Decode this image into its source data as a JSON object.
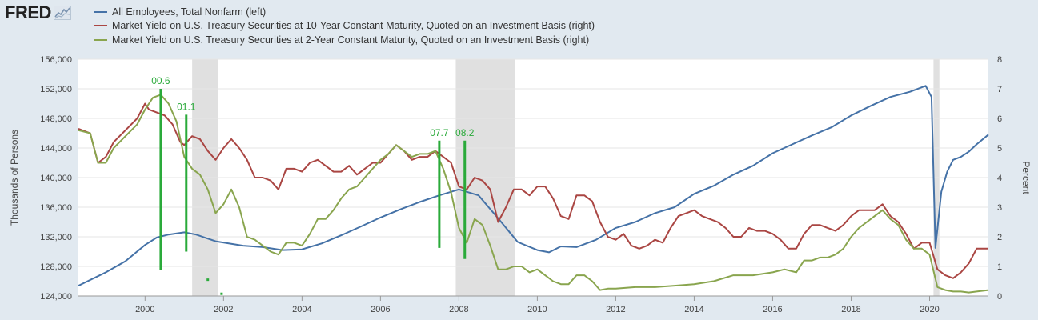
{
  "app": {
    "logo": "FRED"
  },
  "legend": [
    {
      "label": "All Employees, Total Nonfarm (left)",
      "color": "#4572a7"
    },
    {
      "label": "Market Yield on U.S. Treasury Securities at 10-Year Constant Maturity, Quoted on an Investment Basis (right)",
      "color": "#aa4643"
    },
    {
      "label": "Market Yield on U.S. Treasury Securities at 2-Year Constant Maturity, Quoted on an Investment Basis (right)",
      "color": "#89a54e"
    }
  ],
  "chart_data": {
    "type": "line",
    "xlim": [
      1998.3,
      2021.5
    ],
    "x_ticks": [
      "2000",
      "2002",
      "2004",
      "2006",
      "2008",
      "2010",
      "2012",
      "2014",
      "2016",
      "2018",
      "2020"
    ],
    "left_axis": {
      "label": "Thousands of Persons",
      "ylim": [
        124000,
        156000
      ],
      "ticks": [
        "124,000",
        "128,000",
        "132,000",
        "136,000",
        "140,000",
        "144,000",
        "148,000",
        "152,000",
        "156,000"
      ]
    },
    "right_axis": {
      "label": "Percent",
      "ylim": [
        0,
        8
      ],
      "ticks": [
        "0",
        "1",
        "2",
        "3",
        "4",
        "5",
        "6",
        "7",
        "8"
      ]
    },
    "recessions": [
      [
        2001.2,
        2001.85
      ],
      [
        2007.92,
        2009.42
      ],
      [
        2020.1,
        2020.25
      ]
    ],
    "series": [
      {
        "name": "All Employees, Total Nonfarm (left)",
        "axis": "left",
        "color": "#4572a7",
        "x": [
          1998.3,
          1999.0,
          1999.5,
          2000.0,
          2000.3,
          2000.6,
          2001.0,
          2001.3,
          2001.8,
          2002.5,
          2003.0,
          2003.5,
          2004.0,
          2004.5,
          2005.0,
          2005.5,
          2006.0,
          2006.5,
          2007.0,
          2007.5,
          2008.0,
          2008.5,
          2009.0,
          2009.5,
          2010.0,
          2010.3,
          2010.6,
          2011.0,
          2011.5,
          2012.0,
          2012.5,
          2013.0,
          2013.5,
          2014.0,
          2014.5,
          2015.0,
          2015.5,
          2016.0,
          2016.5,
          2017.0,
          2017.5,
          2018.0,
          2018.5,
          2019.0,
          2019.5,
          2019.9,
          2020.05,
          2020.15,
          2020.3,
          2020.45,
          2020.6,
          2020.8,
          2021.0,
          2021.2,
          2021.5
        ],
        "values": [
          125400,
          127200,
          128700,
          130900,
          131900,
          132300,
          132600,
          132300,
          131400,
          130800,
          130600,
          130200,
          130300,
          131100,
          132200,
          133400,
          134600,
          135700,
          136700,
          137600,
          138400,
          137600,
          134500,
          131300,
          130200,
          129900,
          130700,
          130600,
          131600,
          133200,
          134000,
          135200,
          136000,
          137800,
          138900,
          140400,
          141600,
          143300,
          144500,
          145700,
          146800,
          148400,
          149700,
          150900,
          151600,
          152400,
          150900,
          130500,
          138100,
          140800,
          142400,
          142800,
          143500,
          144500,
          145800
        ]
      },
      {
        "name": "Market Yield on U.S. Treasury Securities at 10-Year Constant Maturity, Quoted on an Investment Basis (right)",
        "axis": "right",
        "color": "#aa4643",
        "x": [
          1998.3,
          1998.6,
          1998.8,
          1999.0,
          1999.2,
          1999.5,
          1999.8,
          2000.0,
          2000.1,
          2000.3,
          2000.5,
          2000.7,
          2000.9,
          2001.0,
          2001.2,
          2001.4,
          2001.6,
          2001.8,
          2002.0,
          2002.2,
          2002.4,
          2002.6,
          2002.8,
          2003.0,
          2003.2,
          2003.4,
          2003.6,
          2003.8,
          2004.0,
          2004.2,
          2004.4,
          2004.6,
          2004.8,
          2005.0,
          2005.2,
          2005.4,
          2005.6,
          2005.8,
          2006.0,
          2006.2,
          2006.4,
          2006.6,
          2006.8,
          2007.0,
          2007.2,
          2007.4,
          2007.6,
          2007.8,
          2008.0,
          2008.2,
          2008.4,
          2008.6,
          2008.8,
          2009.0,
          2009.2,
          2009.4,
          2009.6,
          2009.8,
          2010.0,
          2010.2,
          2010.4,
          2010.6,
          2010.8,
          2011.0,
          2011.2,
          2011.4,
          2011.6,
          2011.8,
          2012.0,
          2012.2,
          2012.4,
          2012.6,
          2012.8,
          2013.0,
          2013.2,
          2013.4,
          2013.6,
          2013.8,
          2014.0,
          2014.2,
          2014.4,
          2014.6,
          2014.8,
          2015.0,
          2015.2,
          2015.4,
          2015.6,
          2015.8,
          2016.0,
          2016.2,
          2016.4,
          2016.6,
          2016.8,
          2017.0,
          2017.2,
          2017.4,
          2017.6,
          2017.8,
          2018.0,
          2018.2,
          2018.4,
          2018.6,
          2018.8,
          2019.0,
          2019.2,
          2019.4,
          2019.6,
          2019.8,
          2020.0,
          2020.2,
          2020.4,
          2020.6,
          2020.8,
          2021.0,
          2021.2,
          2021.5
        ],
        "values": [
          5.65,
          5.5,
          4.5,
          4.7,
          5.2,
          5.6,
          6.0,
          6.5,
          6.3,
          6.2,
          6.1,
          5.8,
          5.2,
          5.1,
          5.4,
          5.3,
          4.9,
          4.6,
          5.0,
          5.3,
          5.0,
          4.6,
          4.0,
          4.0,
          3.9,
          3.6,
          4.3,
          4.3,
          4.2,
          4.5,
          4.6,
          4.4,
          4.2,
          4.2,
          4.4,
          4.1,
          4.3,
          4.5,
          4.5,
          4.8,
          5.1,
          4.9,
          4.6,
          4.7,
          4.7,
          4.9,
          4.7,
          4.5,
          3.7,
          3.6,
          4.0,
          3.9,
          3.6,
          2.5,
          3.0,
          3.6,
          3.6,
          3.4,
          3.7,
          3.7,
          3.3,
          2.7,
          2.6,
          3.4,
          3.4,
          3.2,
          2.5,
          2.0,
          1.9,
          2.1,
          1.7,
          1.6,
          1.7,
          1.9,
          1.8,
          2.3,
          2.7,
          2.8,
          2.9,
          2.7,
          2.6,
          2.5,
          2.3,
          2.0,
          2.0,
          2.3,
          2.2,
          2.2,
          2.1,
          1.9,
          1.6,
          1.6,
          2.1,
          2.4,
          2.4,
          2.3,
          2.2,
          2.4,
          2.7,
          2.9,
          2.9,
          2.9,
          3.1,
          2.7,
          2.5,
          2.1,
          1.6,
          1.8,
          1.8,
          0.9,
          0.7,
          0.6,
          0.8,
          1.1,
          1.6,
          1.6
        ]
      },
      {
        "name": "Market Yield on U.S. Treasury Securities at 2-Year Constant Maturity, Quoted on an Investment Basis (right)",
        "axis": "right",
        "color": "#89a54e",
        "x": [
          1998.3,
          1998.6,
          1998.8,
          1999.0,
          1999.2,
          1999.5,
          1999.8,
          2000.0,
          2000.2,
          2000.4,
          2000.6,
          2000.8,
          2001.0,
          2001.2,
          2001.4,
          2001.6,
          2001.8,
          2002.0,
          2002.2,
          2002.4,
          2002.6,
          2002.8,
          2003.0,
          2003.2,
          2003.4,
          2003.6,
          2003.8,
          2004.0,
          2004.2,
          2004.4,
          2004.6,
          2004.8,
          2005.0,
          2005.2,
          2005.4,
          2005.6,
          2005.8,
          2006.0,
          2006.2,
          2006.4,
          2006.6,
          2006.8,
          2007.0,
          2007.2,
          2007.4,
          2007.6,
          2007.8,
          2008.0,
          2008.2,
          2008.4,
          2008.6,
          2008.8,
          2009.0,
          2009.2,
          2009.4,
          2009.6,
          2009.8,
          2010.0,
          2010.2,
          2010.4,
          2010.6,
          2010.8,
          2011.0,
          2011.2,
          2011.4,
          2011.6,
          2011.8,
          2012.0,
          2012.5,
          2013.0,
          2013.5,
          2014.0,
          2014.5,
          2015.0,
          2015.5,
          2016.0,
          2016.3,
          2016.6,
          2016.8,
          2017.0,
          2017.2,
          2017.4,
          2017.6,
          2017.8,
          2018.0,
          2018.2,
          2018.4,
          2018.6,
          2018.8,
          2019.0,
          2019.2,
          2019.4,
          2019.6,
          2019.8,
          2020.0,
          2020.2,
          2020.4,
          2020.6,
          2020.8,
          2021.0,
          2021.2,
          2021.5
        ],
        "values": [
          5.6,
          5.5,
          4.5,
          4.5,
          5.0,
          5.4,
          5.8,
          6.3,
          6.7,
          6.8,
          6.5,
          5.9,
          4.7,
          4.3,
          4.1,
          3.6,
          2.8,
          3.1,
          3.6,
          3.0,
          2.0,
          1.9,
          1.7,
          1.5,
          1.4,
          1.8,
          1.8,
          1.7,
          2.1,
          2.6,
          2.6,
          2.9,
          3.3,
          3.6,
          3.7,
          4.0,
          4.3,
          4.6,
          4.8,
          5.1,
          4.9,
          4.7,
          4.8,
          4.8,
          4.9,
          4.3,
          3.5,
          2.3,
          1.8,
          2.6,
          2.4,
          1.7,
          0.9,
          0.9,
          1.0,
          1.0,
          0.8,
          0.9,
          0.7,
          0.5,
          0.4,
          0.4,
          0.7,
          0.7,
          0.5,
          0.2,
          0.25,
          0.25,
          0.3,
          0.3,
          0.35,
          0.4,
          0.5,
          0.7,
          0.7,
          0.8,
          0.9,
          0.8,
          1.2,
          1.2,
          1.3,
          1.3,
          1.4,
          1.6,
          2.0,
          2.3,
          2.5,
          2.7,
          2.9,
          2.6,
          2.4,
          1.9,
          1.6,
          1.6,
          1.4,
          0.3,
          0.2,
          0.15,
          0.15,
          0.12,
          0.15,
          0.2
        ]
      }
    ],
    "annotations": [
      {
        "label": "00.6",
        "x": 2000.4,
        "y_top": 152000,
        "y_bottom": 127500
      },
      {
        "label": "01.1",
        "x": 2001.05,
        "y_top": 148500,
        "y_bottom": 130000
      },
      {
        "label": "07.7",
        "x": 2007.5,
        "y_top": 145000,
        "y_bottom": 130500
      },
      {
        "label": "08.2",
        "x": 2008.15,
        "y_top": 145000,
        "y_bottom": 129000
      }
    ],
    "annotation_marks": [
      {
        "x": 2001.6,
        "y": 126200
      },
      {
        "x": 2001.95,
        "y": 124300
      }
    ],
    "annotation_color": "#2aaa3a",
    "recession_color": "#e0e0e0"
  }
}
